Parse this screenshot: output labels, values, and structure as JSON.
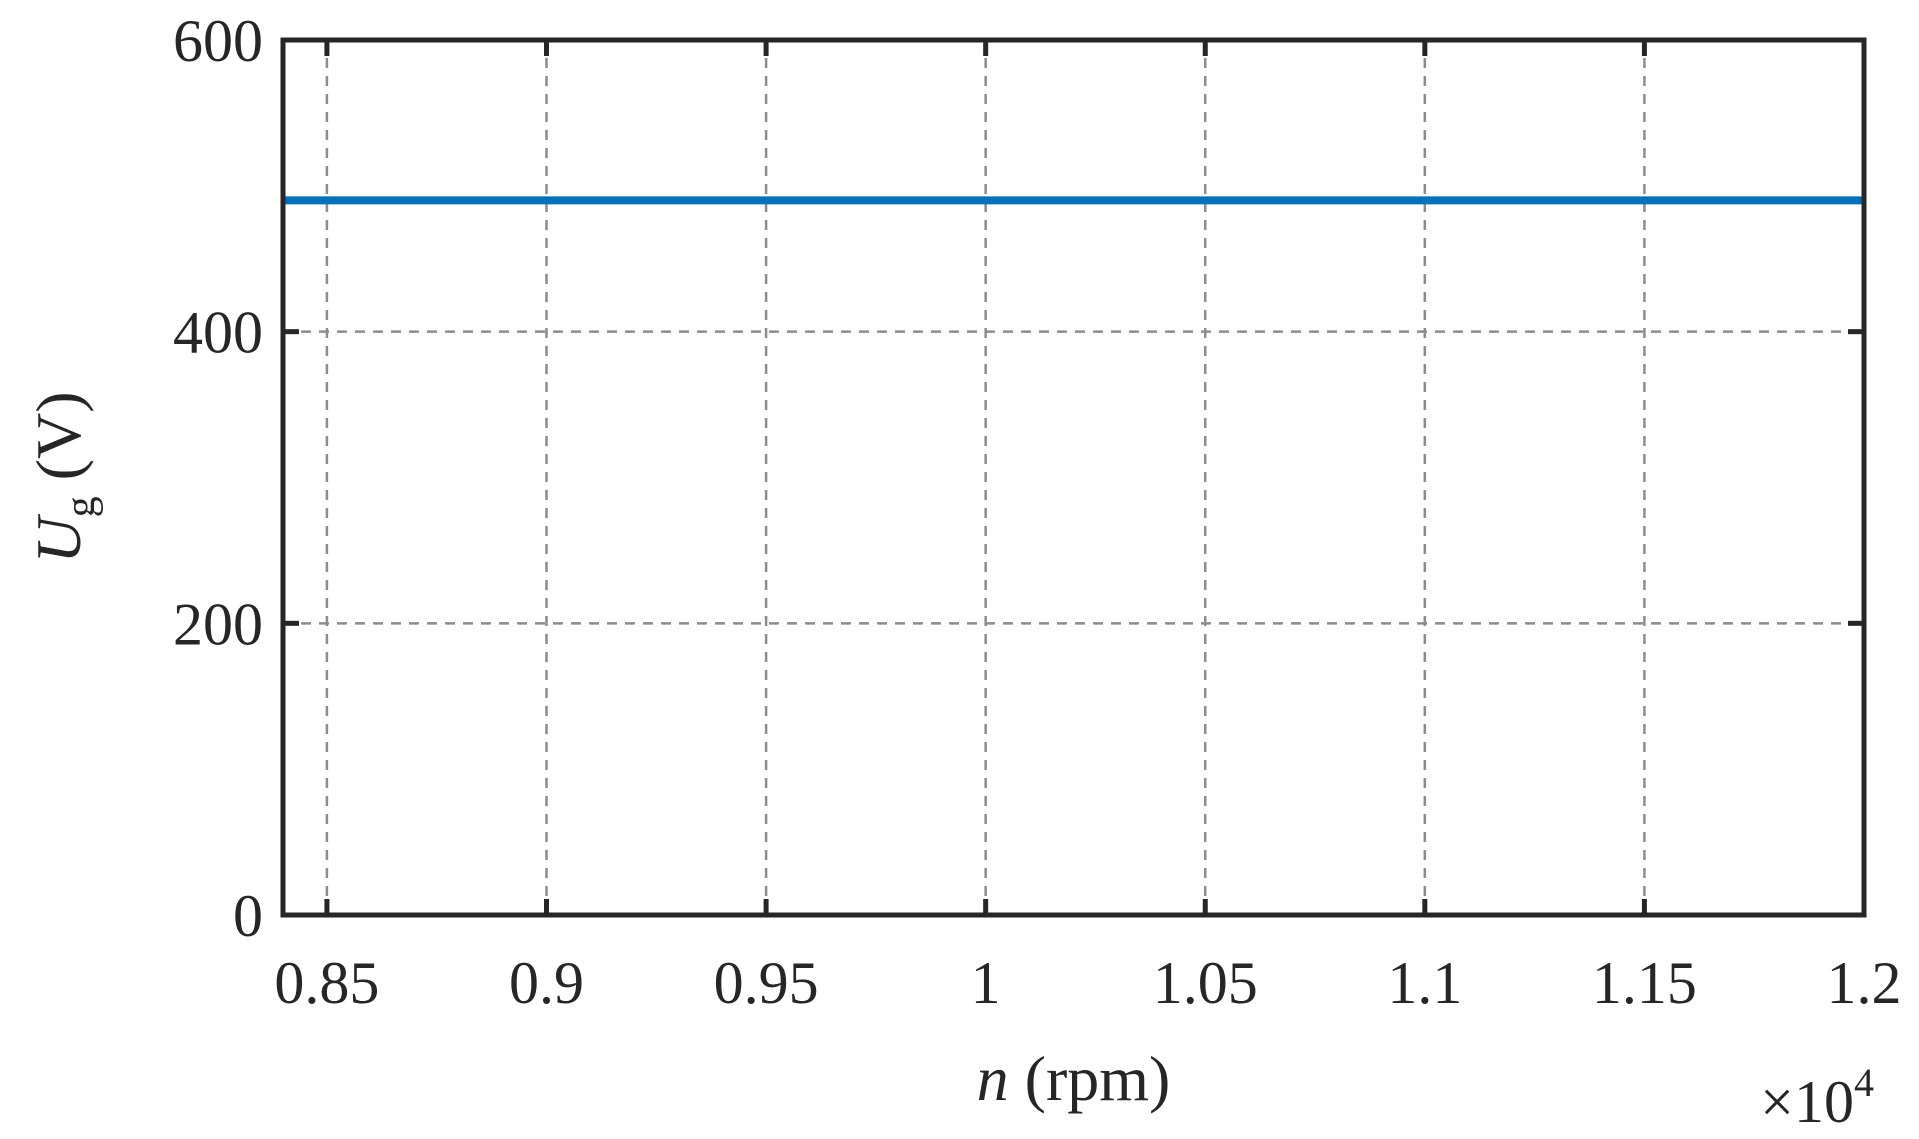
{
  "chart_data": {
    "type": "line",
    "x": [
      8400,
      12000
    ],
    "series": [
      {
        "values": [
          490,
          490
        ],
        "color": "#0072BD"
      }
    ],
    "xlim": [
      8400,
      12000
    ],
    "ylim": [
      0,
      600
    ],
    "xticks": [
      8500,
      9000,
      9500,
      10000,
      10500,
      11000,
      11500,
      12000
    ],
    "xtick_labels": [
      "0.85",
      "0.9",
      "0.95",
      "1",
      "1.05",
      "1.1",
      "1.15",
      "1.2"
    ],
    "yticks": [
      0,
      200,
      400,
      600
    ],
    "ytick_labels": [
      "0",
      "200",
      "400",
      "600"
    ],
    "x_multiplier": {
      "prefix": "×10",
      "exponent": "4"
    },
    "xlabel": {
      "var": "n",
      "unit": " (rpm)"
    },
    "ylabel": {
      "var": "U",
      "sub": "g",
      "unit": " (V)"
    },
    "grid": true,
    "axis_color": "#262626",
    "grid_color": "#8c8c8c"
  }
}
